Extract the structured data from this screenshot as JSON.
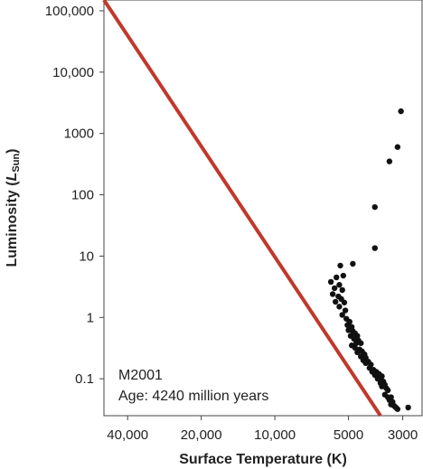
{
  "chart_data": {
    "type": "scatter",
    "x_scale": "log-reversed",
    "y_scale": "log",
    "xlabel": "Surface Temperature (K)",
    "ylabel_main": "Luminosity (",
    "ylabel_symbol": "L",
    "ylabel_subscript": "Sun",
    "ylabel_close": ")",
    "xlim": [
      50000,
      2500
    ],
    "ylim": [
      0.025,
      150000
    ],
    "x_ticks": [
      {
        "value": 40000,
        "label": "40,000"
      },
      {
        "value": 20000,
        "label": "20,000"
      },
      {
        "value": 10000,
        "label": "10,000"
      },
      {
        "value": 5000,
        "label": "5000"
      },
      {
        "value": 3000,
        "label": "3000"
      }
    ],
    "y_ticks": [
      {
        "value": 100000,
        "label": "100,000"
      },
      {
        "value": 10000,
        "label": "10,000"
      },
      {
        "value": 1000,
        "label": "1000"
      },
      {
        "value": 100,
        "label": "100"
      },
      {
        "value": 10,
        "label": "10"
      },
      {
        "value": 1,
        "label": "1"
      },
      {
        "value": 0.1,
        "label": "0.1"
      }
    ],
    "annotation_lines": [
      "M2001",
      "Age: 4240 million years"
    ],
    "main_sequence_line": {
      "color": "#c0392b",
      "points": [
        [
          50000,
          150000
        ],
        [
          3700,
          0.025
        ]
      ]
    },
    "point_color": "#111111",
    "points": [
      [
        3050,
        2300
      ],
      [
        3150,
        600
      ],
      [
        3400,
        350
      ],
      [
        3900,
        63
      ],
      [
        3900,
        13.5
      ],
      [
        5400,
        7
      ],
      [
        4800,
        7.5
      ],
      [
        5600,
        4.5
      ],
      [
        5250,
        4.8
      ],
      [
        5900,
        3.8
      ],
      [
        5450,
        3.4
      ],
      [
        5700,
        3.0
      ],
      [
        5300,
        2.8
      ],
      [
        5800,
        2.4
      ],
      [
        5500,
        2.2
      ],
      [
        5350,
        2.0
      ],
      [
        5650,
        1.8
      ],
      [
        5200,
        1.75
      ],
      [
        5450,
        1.5
      ],
      [
        5150,
        1.3
      ],
      [
        5300,
        1.1
      ],
      [
        5100,
        0.95
      ],
      [
        4950,
        0.85
      ],
      [
        5050,
        0.75
      ],
      [
        4850,
        0.7
      ],
      [
        5000,
        0.62
      ],
      [
        4800,
        0.6
      ],
      [
        4700,
        0.55
      ],
      [
        4600,
        0.5
      ],
      [
        4900,
        0.5
      ],
      [
        4750,
        0.45
      ],
      [
        4550,
        0.42
      ],
      [
        4650,
        0.38
      ],
      [
        4450,
        0.38
      ],
      [
        4850,
        0.35
      ],
      [
        4700,
        0.32
      ],
      [
        4500,
        0.3
      ],
      [
        4400,
        0.28
      ],
      [
        4600,
        0.27
      ],
      [
        4300,
        0.25
      ],
      [
        4450,
        0.23
      ],
      [
        4250,
        0.22
      ],
      [
        4350,
        0.2
      ],
      [
        4150,
        0.19
      ],
      [
        4250,
        0.18
      ],
      [
        4050,
        0.17
      ],
      [
        4100,
        0.15
      ],
      [
        3950,
        0.14
      ],
      [
        4000,
        0.13
      ],
      [
        3850,
        0.13
      ],
      [
        3750,
        0.12
      ],
      [
        3900,
        0.115
      ],
      [
        3650,
        0.11
      ],
      [
        3800,
        0.1
      ],
      [
        3700,
        0.095
      ],
      [
        3600,
        0.09
      ],
      [
        3700,
        0.085
      ],
      [
        3550,
        0.08
      ],
      [
        3650,
        0.075
      ],
      [
        3500,
        0.07
      ],
      [
        3450,
        0.065
      ],
      [
        3550,
        0.055
      ],
      [
        3450,
        0.05
      ],
      [
        3350,
        0.05
      ],
      [
        3400,
        0.045
      ],
      [
        3300,
        0.042
      ],
      [
        3350,
        0.038
      ],
      [
        3250,
        0.036
      ],
      [
        3200,
        0.034
      ],
      [
        3150,
        0.032
      ],
      [
        2850,
        0.034
      ]
    ]
  }
}
